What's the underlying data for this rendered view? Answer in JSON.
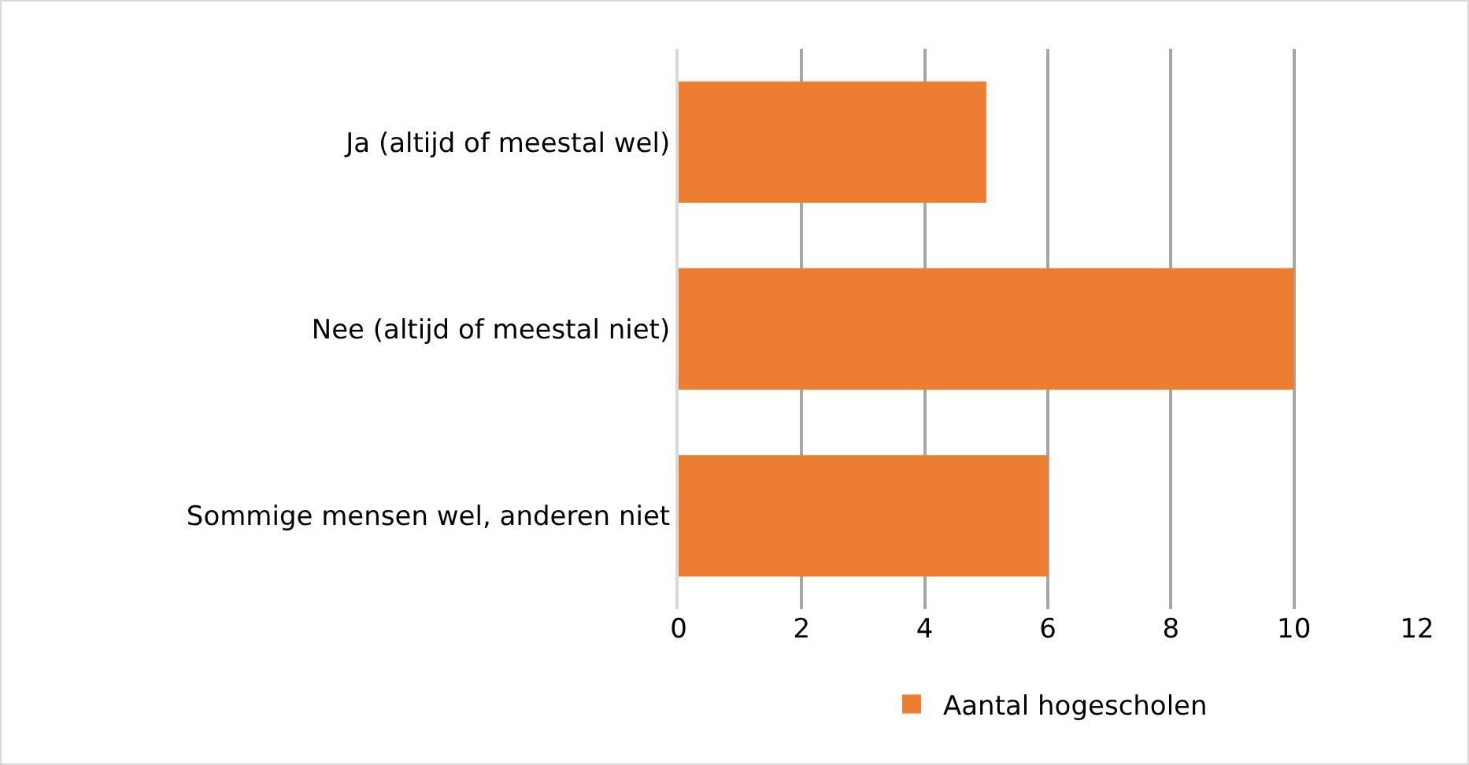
{
  "chart_data": {
    "type": "bar",
    "orientation": "horizontal",
    "categories": [
      "Ja (altijd of meestal wel)",
      "Nee (altijd of meestal niet)",
      "Sommige mensen wel, anderen niet"
    ],
    "series": [
      {
        "name": "Aantal hogescholen",
        "color": "#ed7d31",
        "values": [
          5,
          10,
          6
        ]
      }
    ],
    "xlim": [
      0,
      12
    ],
    "xticks": [
      0,
      2,
      4,
      6,
      8,
      10,
      12
    ],
    "grid": "x",
    "legend": "bottom"
  }
}
